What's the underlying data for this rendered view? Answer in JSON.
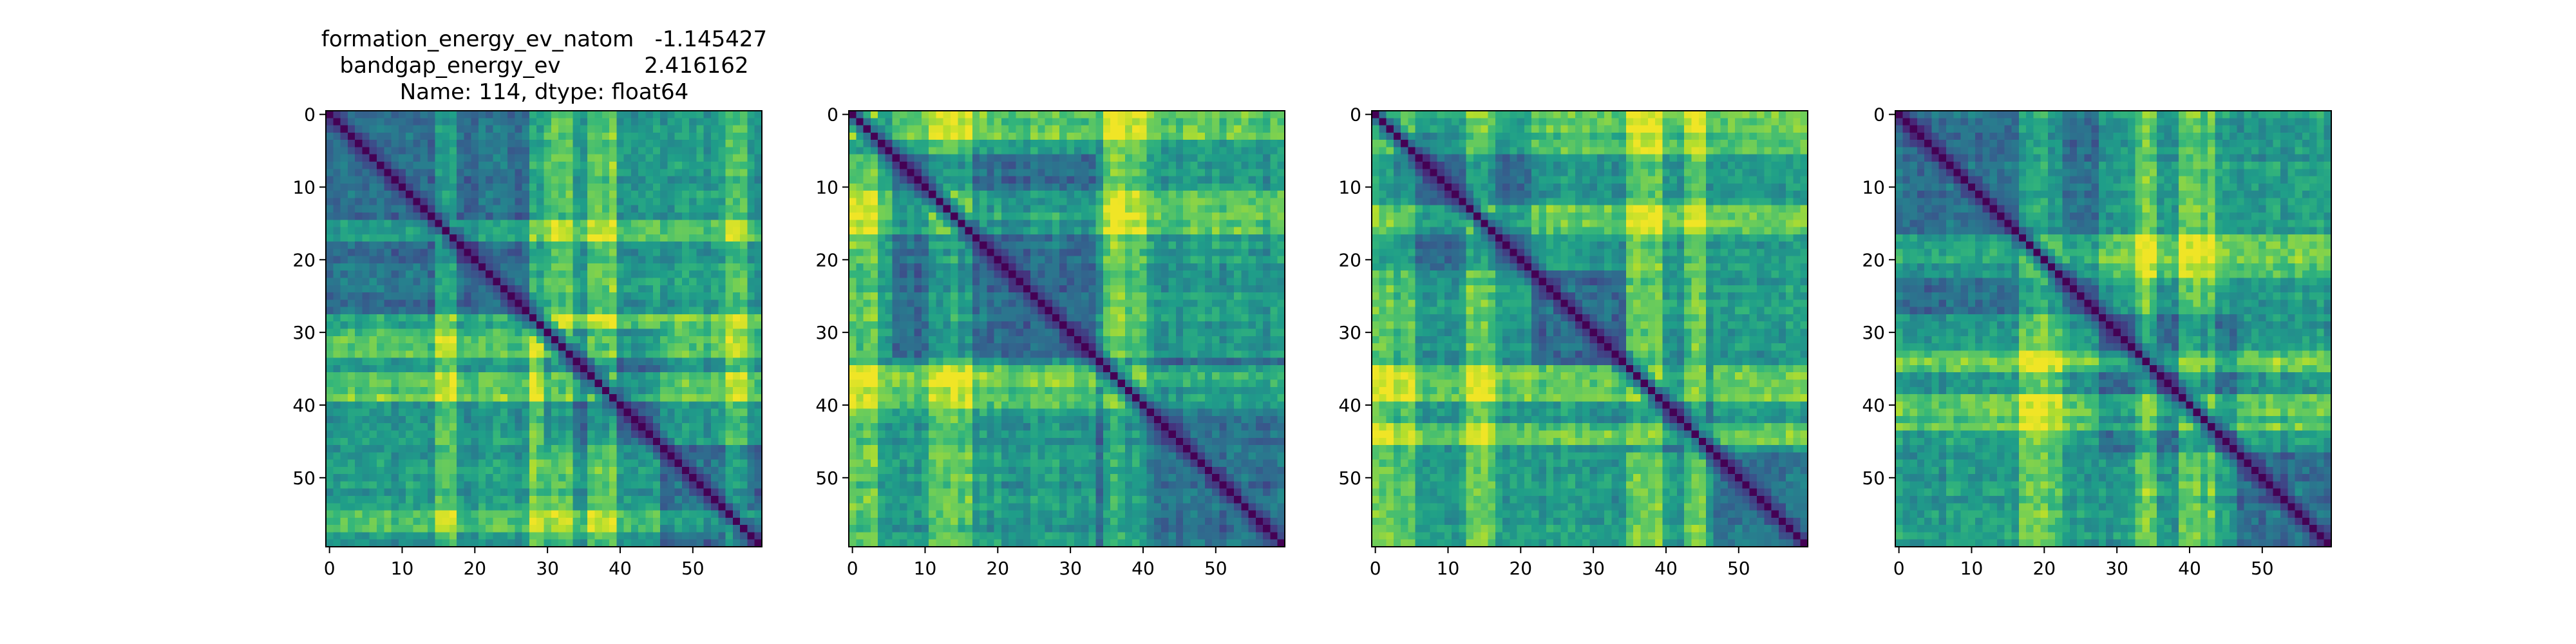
{
  "figure": {
    "title_lines": [
      "formation_energy_ev_natom   -1.145427",
      "bandgap_energy_ev            2.416162",
      "Name: 114, dtype: float64"
    ]
  },
  "chart_data": [
    {
      "type": "heatmap",
      "colormap": "viridis",
      "matrix_size": 60,
      "xticks": [
        "0",
        "10",
        "20",
        "30",
        "40",
        "50"
      ],
      "yticks": [
        "0",
        "10",
        "20",
        "30",
        "40",
        "50"
      ],
      "xlim": [
        0,
        59
      ],
      "ylim": [
        59,
        0
      ],
      "value_range": [
        0,
        1
      ],
      "diagonal": 0,
      "blocks": [
        [
          0,
          30
        ],
        [
          30,
          46
        ],
        [
          46,
          60
        ]
      ],
      "bright_groups": [
        [
          36,
          40
        ],
        [
          28,
          34
        ],
        [
          15,
          18
        ],
        [
          55,
          58
        ]
      ],
      "seed": 114
    },
    {
      "type": "heatmap",
      "colormap": "viridis",
      "matrix_size": 60,
      "xticks": [
        "0",
        "10",
        "20",
        "30",
        "40",
        "50"
      ],
      "yticks": [
        "0",
        "10",
        "20",
        "30",
        "40",
        "50"
      ],
      "xlim": [
        0,
        59
      ],
      "ylim": [
        59,
        0
      ],
      "value_range": [
        0,
        1
      ],
      "diagonal": 0,
      "blocks": [
        [
          0,
          6
        ],
        [
          6,
          34
        ],
        [
          34,
          60
        ]
      ],
      "bright_groups": [
        [
          0,
          4
        ],
        [
          11,
          17
        ],
        [
          35,
          41
        ]
      ],
      "seed": 2
    },
    {
      "type": "heatmap",
      "colormap": "viridis",
      "matrix_size": 60,
      "xticks": [
        "0",
        "10",
        "20",
        "30",
        "40",
        "50"
      ],
      "yticks": [
        "0",
        "10",
        "20",
        "30",
        "40",
        "50"
      ],
      "xlim": [
        0,
        59
      ],
      "ylim": [
        59,
        0
      ],
      "value_range": [
        0,
        1
      ],
      "diagonal": 0,
      "blocks": [
        [
          0,
          22
        ],
        [
          22,
          35
        ],
        [
          35,
          47
        ],
        [
          47,
          60
        ]
      ],
      "bright_groups": [
        [
          0,
          6
        ],
        [
          13,
          17
        ],
        [
          35,
          40
        ],
        [
          43,
          46
        ]
      ],
      "seed": 3
    },
    {
      "type": "heatmap",
      "colormap": "viridis",
      "matrix_size": 60,
      "xticks": [
        "0",
        "10",
        "20",
        "30",
        "40",
        "50"
      ],
      "yticks": [
        "0",
        "10",
        "20",
        "30",
        "40",
        "50"
      ],
      "xlim": [
        0,
        59
      ],
      "ylim": [
        59,
        0
      ],
      "value_range": [
        0,
        1
      ],
      "diagonal": 0,
      "blocks": [
        [
          0,
          28
        ],
        [
          28,
          47
        ],
        [
          47,
          60
        ]
      ],
      "bright_groups": [
        [
          17,
          23
        ],
        [
          39,
          44
        ],
        [
          33,
          36
        ]
      ],
      "seed": 4
    }
  ]
}
